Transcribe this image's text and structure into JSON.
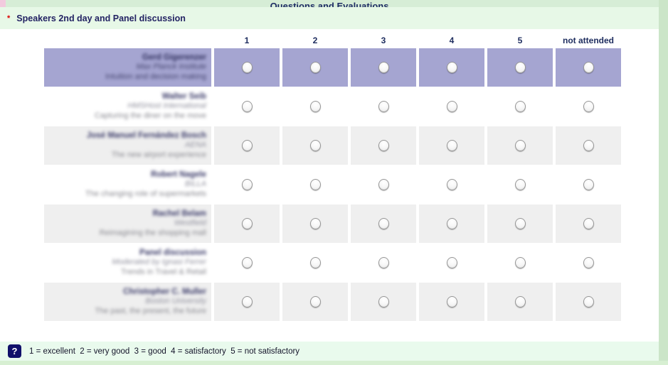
{
  "page": {
    "title": "Questions and Evaluations",
    "required_marker": "*",
    "section_title": "Speakers 2nd day and Panel discussion",
    "help_icon": "?",
    "legend": "1 = excellent  2 = very good  3 = good  4 = satisfactory  5 = not satisfactory"
  },
  "table": {
    "columns": [
      "1",
      "2",
      "3",
      "4",
      "5",
      "not attended"
    ],
    "rows": [
      {
        "name": "Gerd Gigerenzer",
        "org": "Max Planck Institute",
        "topic": "Intuition and decision making",
        "highlighted": true
      },
      {
        "name": "Walter Seib",
        "org": "HMSHost International",
        "topic": "Capturing the diner on the move",
        "highlighted": false
      },
      {
        "name": "José Manuel Fernández Bosch",
        "org": "AENA",
        "topic": "The new airport experience",
        "highlighted": false
      },
      {
        "name": "Robert Nagele",
        "org": "BILLA",
        "topic": "The changing role of supermarkets",
        "highlighted": false
      },
      {
        "name": "Rachel Belam",
        "org": "Westfield",
        "topic": "Reimagining the shopping mall",
        "highlighted": false
      },
      {
        "name": "Panel discussion",
        "org": "Moderated by Ignasi Ferrer",
        "topic": "Trends in Travel & Retail",
        "highlighted": false
      },
      {
        "name": "Christopher C. Muller",
        "org": "Boston University",
        "topic": "The past, the present, the future",
        "highlighted": false
      }
    ]
  },
  "colors": {
    "highlight_row": "#a5a5d1",
    "alt_row": "#efefef",
    "header_green_dark": "#d6edd6",
    "header_green_light": "#e7f8e7",
    "legend_green": "#e9faed",
    "outer_green": "#cbe5c8",
    "navy_text": "#1d2c5e",
    "help_button_bg": "#10106a",
    "required_red": "#dd0000"
  }
}
